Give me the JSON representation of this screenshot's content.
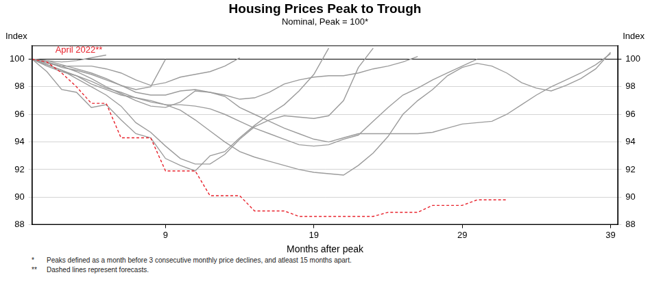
{
  "chart_data": {
    "type": "line",
    "title": "Housing Prices Peak to Trough",
    "subtitle": "Nominal, Peak = 100*",
    "xlabel": "Months after peak",
    "ylabel": "Index",
    "y2label": "Index",
    "x": [
      0,
      1,
      2,
      3,
      4,
      5,
      6,
      7,
      8,
      9,
      10,
      11,
      12,
      13,
      14,
      15,
      16,
      17,
      18,
      19,
      20,
      21,
      22,
      23,
      24,
      25,
      26,
      27,
      28,
      29,
      30,
      31,
      32,
      33,
      34,
      35,
      36,
      37,
      38,
      39
    ],
    "xlim": [
      0,
      39.5
    ],
    "xticks": [
      9,
      19,
      29,
      39
    ],
    "ylim": [
      88,
      101
    ],
    "yticks": [
      88,
      90,
      92,
      94,
      96,
      98,
      100
    ],
    "y2lim": [
      88,
      101
    ],
    "y2ticks": [
      88,
      90,
      92,
      94,
      96,
      98,
      100
    ],
    "grid": true,
    "series": [
      {
        "color": "#9b9b9b",
        "values": [
          100,
          99.9,
          99.8,
          99.9,
          100.1,
          100.3,
          null,
          null,
          null,
          null,
          null,
          null,
          null,
          null,
          null,
          null,
          null,
          null,
          null,
          null,
          null,
          null,
          null,
          null,
          null,
          null,
          null,
          null,
          null,
          null,
          null,
          null,
          null,
          null,
          null,
          null,
          null,
          null,
          null,
          null
        ]
      },
      {
        "color": "#9b9b9b",
        "values": [
          100,
          99.8,
          99.4,
          99.2,
          98.9,
          98.5,
          98.1,
          97.8,
          98.0,
          100.0,
          null,
          null,
          null,
          null,
          null,
          null,
          null,
          null,
          null,
          null,
          null,
          null,
          null,
          null,
          null,
          null,
          null,
          null,
          null,
          null,
          null,
          null,
          null,
          null,
          null,
          null,
          null,
          null,
          null,
          null
        ]
      },
      {
        "color": "#9b9b9b",
        "values": [
          100,
          99.7,
          99.5,
          99.5,
          99.5,
          99.3,
          99.0,
          98.5,
          98.1,
          98.3,
          98.7,
          98.9,
          99.1,
          99.5,
          100.1,
          null,
          null,
          null,
          null,
          null,
          null,
          null,
          null,
          null,
          null,
          null,
          null,
          null,
          null,
          null,
          null,
          null,
          null,
          null,
          null,
          null,
          null,
          null,
          null,
          null
        ]
      },
      {
        "color": "#9b9b9b",
        "values": [
          100,
          99.1,
          97.8,
          97.6,
          96.5,
          96.7,
          95.6,
          94.6,
          94.3,
          92.8,
          92.3,
          91.9,
          93.0,
          93.3,
          94.3,
          95.2,
          96.0,
          96.7,
          97.7,
          98.9,
          100.8,
          null,
          null,
          null,
          null,
          null,
          null,
          null,
          null,
          null,
          null,
          null,
          null,
          null,
          null,
          null,
          null,
          null,
          null,
          null
        ]
      },
      {
        "color": "#9b9b9b",
        "values": [
          100,
          99.6,
          99.2,
          98.6,
          98.0,
          97.4,
          96.6,
          95.4,
          94.7,
          93.7,
          92.8,
          92.4,
          92.4,
          93.1,
          94.2,
          95.1,
          95.6,
          95.9,
          95.8,
          95.7,
          95.9,
          97.0,
          99.4,
          100.8,
          null,
          null,
          null,
          null,
          null,
          null,
          null,
          null,
          null,
          null,
          null,
          null,
          null,
          null,
          null,
          null
        ]
      },
      {
        "color": "#9b9b9b",
        "values": [
          100,
          99.9,
          99.6,
          99.3,
          99.0,
          98.6,
          98.1,
          97.6,
          97.4,
          97.4,
          97.7,
          97.8,
          97.6,
          97.4,
          97.1,
          97.2,
          97.6,
          98.2,
          98.5,
          98.7,
          98.8,
          98.8,
          99.0,
          99.3,
          99.5,
          99.8,
          100.2,
          null,
          null,
          null,
          null,
          null,
          null,
          null,
          null,
          null,
          null,
          null,
          null,
          null
        ]
      },
      {
        "color": "#9b9b9b",
        "values": [
          100,
          99.5,
          99.1,
          98.8,
          98.4,
          97.9,
          97.6,
          97.2,
          96.9,
          96.7,
          96.7,
          96.6,
          96.4,
          96.0,
          95.5,
          95.0,
          94.6,
          94.2,
          93.8,
          93.7,
          93.8,
          94.2,
          94.5,
          95.5,
          96.5,
          97.4,
          97.9,
          98.5,
          99.0,
          99.5,
          100.0,
          null,
          null,
          null,
          null,
          null,
          null,
          null,
          null,
          null
        ]
      },
      {
        "color": "#9b9b9b",
        "values": [
          100,
          99.6,
          99.2,
          98.8,
          98.2,
          97.8,
          97.4,
          97.2,
          97.0,
          96.7,
          96.3,
          95.6,
          94.8,
          94.0,
          93.3,
          92.9,
          92.6,
          92.3,
          92.0,
          91.8,
          91.7,
          91.6,
          92.3,
          93.2,
          94.4,
          96.0,
          97.0,
          97.8,
          98.8,
          99.4,
          99.7,
          99.5,
          99.0,
          98.3,
          97.9,
          97.7,
          98.1,
          98.6,
          99.3,
          100.5
        ]
      },
      {
        "color": "#9b9b9b",
        "values": [
          100,
          99.8,
          99.5,
          99.1,
          98.6,
          98.0,
          97.5,
          97.0,
          96.6,
          96.5,
          96.9,
          97.7,
          97.6,
          97.3,
          96.5,
          96.0,
          95.5,
          95.0,
          94.6,
          94.2,
          94.0,
          94.3,
          94.6,
          94.6,
          94.6,
          94.6,
          94.6,
          94.7,
          95.0,
          95.3,
          95.4,
          95.5,
          96.0,
          96.7,
          97.4,
          98.0,
          98.5,
          99.0,
          99.6,
          100.4
        ]
      },
      {
        "name": "April 2022**",
        "color": "#e8202a",
        "line_style": "dashed",
        "values": [
          100,
          99.8,
          99.0,
          98.0,
          96.8,
          96.8,
          94.3,
          94.3,
          94.3,
          91.9,
          91.9,
          91.9,
          90.1,
          90.1,
          90.1,
          89.0,
          89.0,
          89.0,
          88.6,
          88.6,
          88.6,
          88.6,
          88.6,
          88.6,
          88.9,
          88.9,
          88.9,
          89.4,
          89.4,
          89.4,
          89.8,
          89.8,
          89.8,
          null,
          null,
          null,
          null,
          null,
          null,
          null
        ]
      }
    ],
    "notes": [
      {
        "mark": "*",
        "text": "Peaks defined as a month before 3 consecutive monthly price declines, and atleast 15 months apart."
      },
      {
        "mark": "**",
        "text": "Dashed lines represent forecasts."
      }
    ]
  }
}
